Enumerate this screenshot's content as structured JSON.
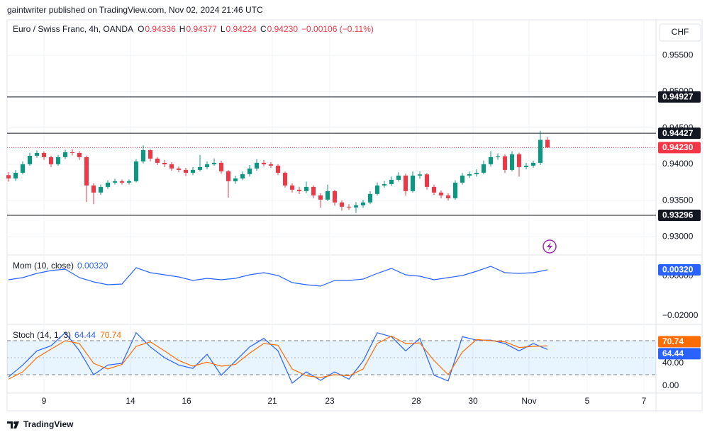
{
  "header": {
    "publisher": "gaintwriter published on TradingView.com, Nov 02, 2024 21:46 UTC",
    "footer": "TradingView"
  },
  "chart_data": [
    {
      "type": "candlestick",
      "title": "Euro / Swiss Franc, 4h, OANDA",
      "currency": "CHF",
      "legend": [
        {
          "key": "O",
          "value": "0.94336"
        },
        {
          "key": "H",
          "value": "0.94377"
        },
        {
          "key": "L",
          "value": "0.94224"
        },
        {
          "key": "C",
          "value": "0.94230"
        }
      ],
      "change": "−0.00106 (−0.11%)",
      "up_color": "#089981",
      "down_color": "#f23645",
      "x": [
        0,
        1,
        2,
        3,
        4,
        5,
        6,
        7,
        8,
        9,
        10,
        11,
        12,
        13,
        14,
        15,
        16,
        17,
        18,
        19,
        20,
        21,
        22,
        23,
        24,
        25,
        26,
        27,
        28,
        29,
        30,
        31,
        32,
        33,
        34,
        35,
        36,
        37,
        38,
        39,
        40,
        41,
        42,
        43,
        44,
        45,
        46,
        47,
        48,
        49,
        50,
        51,
        52,
        53,
        54,
        55,
        56,
        57,
        58,
        59,
        60,
        61,
        62,
        63,
        64,
        65,
        66,
        67,
        68,
        69,
        70,
        71,
        72,
        73,
        74,
        75,
        76
      ],
      "open": [
        0.9385,
        0.93805,
        0.93883,
        0.94,
        0.94117,
        0.94156,
        0.94098,
        0.94,
        0.94098,
        0.94166,
        0.94156,
        0.94098,
        0.93708,
        0.9361,
        0.93688,
        0.93747,
        0.93766,
        0.93747,
        0.93766,
        0.94039,
        0.94195,
        0.94078,
        0.9402,
        0.94,
        0.93942,
        0.93922,
        0.93883,
        0.93922,
        0.93961,
        0.94,
        0.9402,
        0.93903,
        0.93766,
        0.93805,
        0.93864,
        0.93942,
        0.9402,
        0.94,
        0.93981,
        0.93883,
        0.93708,
        0.93649,
        0.9363,
        0.93688,
        0.93571,
        0.93513,
        0.9363,
        0.93474,
        0.93415,
        0.93405,
        0.93434,
        0.93474,
        0.93591,
        0.93708,
        0.93727,
        0.93786,
        0.93844,
        0.9363,
        0.93844,
        0.9386,
        0.93688,
        0.9361,
        0.93571,
        0.93532,
        0.93747,
        0.93844,
        0.93864,
        0.93883,
        0.94,
        0.94098,
        0.9411,
        0.93922,
        0.94137,
        0.93961,
        0.93981,
        0.9402,
        0.94336
      ],
      "high": [
        0.9389,
        0.9392,
        0.9404,
        0.9416,
        0.9419,
        0.9418,
        0.9412,
        0.9413,
        0.942,
        0.9421,
        0.9418,
        0.9412,
        0.9374,
        0.9372,
        0.9378,
        0.938,
        0.9379,
        0.9379,
        0.9407,
        0.9426,
        0.9421,
        0.941,
        0.9406,
        0.9403,
        0.9397,
        0.9395,
        0.9396,
        0.9413,
        0.9404,
        0.9408,
        0.9405,
        0.9392,
        0.9384,
        0.939,
        0.9399,
        0.9407,
        0.9406,
        0.9403,
        0.94,
        0.939,
        0.9374,
        0.9369,
        0.9376,
        0.9371,
        0.936,
        0.9372,
        0.9365,
        0.935,
        0.9345,
        0.9348,
        0.9351,
        0.9363,
        0.9375,
        0.9377,
        0.9383,
        0.9389,
        0.9387,
        0.939,
        0.939,
        0.9388,
        0.9372,
        0.9364,
        0.936,
        0.9378,
        0.9388,
        0.939,
        0.9393,
        0.9405,
        0.9418,
        0.9415,
        0.9414,
        0.9418,
        0.9416,
        0.9402,
        0.9405,
        0.9446,
        0.94377
      ],
      "low": [
        0.9376,
        0.9377,
        0.9386,
        0.9398,
        0.9409,
        0.9406,
        0.9396,
        0.9398,
        0.9407,
        0.9412,
        0.9406,
        0.9348,
        0.9345,
        0.9358,
        0.9366,
        0.9372,
        0.9372,
        0.9372,
        0.9375,
        0.9401,
        0.9404,
        0.9399,
        0.9396,
        0.9391,
        0.9389,
        0.9384,
        0.9385,
        0.939,
        0.9393,
        0.9398,
        0.9387,
        0.9354,
        0.9373,
        0.9378,
        0.9383,
        0.9391,
        0.9397,
        0.9395,
        0.9385,
        0.9368,
        0.9361,
        0.9359,
        0.936,
        0.9353,
        0.934,
        0.9349,
        0.9343,
        0.9336,
        0.9337,
        0.9333,
        0.934,
        0.9345,
        0.9357,
        0.9368,
        0.937,
        0.9376,
        0.9357,
        0.9361,
        0.938,
        0.9365,
        0.9358,
        0.9353,
        0.935,
        0.9351,
        0.9372,
        0.9381,
        0.9383,
        0.9386,
        0.9397,
        0.9406,
        0.9388,
        0.939,
        0.9383,
        0.9393,
        0.9395,
        0.9399,
        0.94224
      ],
      "close": [
        0.93805,
        0.93883,
        0.94,
        0.94117,
        0.94156,
        0.94098,
        0.94,
        0.94098,
        0.94166,
        0.94156,
        0.94098,
        0.93708,
        0.9361,
        0.93688,
        0.93747,
        0.93766,
        0.93747,
        0.93766,
        0.94039,
        0.94195,
        0.94078,
        0.9402,
        0.94,
        0.93942,
        0.93922,
        0.93883,
        0.93922,
        0.93961,
        0.94,
        0.9402,
        0.93903,
        0.93766,
        0.93805,
        0.93864,
        0.93942,
        0.9402,
        0.94,
        0.93981,
        0.93883,
        0.93708,
        0.93649,
        0.9363,
        0.93688,
        0.93571,
        0.93513,
        0.9363,
        0.93474,
        0.93415,
        0.93405,
        0.93434,
        0.93474,
        0.93591,
        0.93708,
        0.93727,
        0.93786,
        0.93844,
        0.9363,
        0.93844,
        0.9386,
        0.93688,
        0.9361,
        0.93571,
        0.93532,
        0.93747,
        0.93844,
        0.93864,
        0.93883,
        0.94,
        0.94098,
        0.9411,
        0.93922,
        0.94137,
        0.93961,
        0.93981,
        0.9402,
        0.94336,
        0.9423
      ],
      "xlim": [
        -0.2,
        91.3
      ],
      "xticks": [
        {
          "value": 5,
          "label": "9"
        },
        {
          "value": 17.2,
          "label": "14"
        },
        {
          "value": 25.1,
          "label": "16"
        },
        {
          "value": 37.2,
          "label": "21"
        },
        {
          "value": 45.3,
          "label": "23"
        },
        {
          "value": 57.5,
          "label": "28"
        },
        {
          "value": 65.5,
          "label": "30"
        },
        {
          "value": 73.4,
          "label": "Nov"
        },
        {
          "value": 81.6,
          "label": "5"
        },
        {
          "value": 89.6,
          "label": "7"
        }
      ],
      "ylim": [
        0.9275,
        0.9599
      ],
      "yticks": [
        {
          "value": 0.955,
          "label": "0.95500"
        },
        {
          "value": 0.95,
          "label": "0.95000"
        },
        {
          "value": 0.945,
          "label": "0.94500"
        },
        {
          "value": 0.94,
          "label": "0.94000"
        },
        {
          "value": 0.935,
          "label": "0.93500"
        },
        {
          "value": 0.93,
          "label": "0.93000"
        }
      ],
      "levels": [
        {
          "value": 0.94927,
          "label": "0.94927"
        },
        {
          "value": 0.94427,
          "label": "0.94427"
        },
        {
          "value": 0.93296,
          "label": "0.93296"
        }
      ],
      "last_price": {
        "value": 0.9423,
        "label": "0.94230"
      },
      "grid": true
    },
    {
      "type": "line",
      "title": "Mom (10, close)",
      "last_label": "0.00320",
      "series": [
        {
          "name": "Mom",
          "color": "#2962ff",
          "x": [
            0,
            2,
            4,
            6,
            8,
            10,
            12,
            14,
            16,
            18,
            20,
            22,
            24,
            26,
            28,
            30,
            32,
            34,
            36,
            38,
            40,
            42,
            44,
            46,
            48,
            50,
            52,
            54,
            56,
            58,
            60,
            62,
            64,
            66,
            68,
            70,
            72,
            74,
            76
          ],
          "values": [
            -0.00179,
            -0.00071,
            0.00143,
            0.00286,
            0.00357,
            -0.00071,
            -0.00286,
            -0.00429,
            -0.00393,
            0.00429,
            0.00179,
            0.00071,
            -0.00036,
            -0.00214,
            -0.00107,
            -0.00179,
            -0.00107,
            0.00071,
            0.00179,
            0.00036,
            -0.00321,
            -0.00429,
            -0.005,
            -0.00214,
            -0.00214,
            -0.00143,
            0.00143,
            0.00393,
            0.00071,
            0,
            -0.00179,
            -0.00071,
            0.00036,
            0.0025,
            0.005,
            0.00179,
            0.00143,
            0.00179,
            0.0032
          ]
        }
      ],
      "ylim": [
        -0.02429,
        0.01071
      ],
      "yticks": [
        {
          "value": 0,
          "label": "0.00000"
        },
        {
          "value": -0.02,
          "label": "−0.02000"
        }
      ]
    },
    {
      "type": "line",
      "title": "Stoch (14, 1, 3)",
      "series": [
        {
          "name": "%K",
          "color": "#2962ff",
          "last_label": "64.44",
          "x": [
            0,
            2,
            4,
            6,
            8,
            10,
            12,
            14,
            16,
            18,
            20,
            22,
            24,
            26,
            28,
            30,
            32,
            34,
            36,
            38,
            40,
            42,
            44,
            46,
            48,
            50,
            52,
            54,
            56,
            58,
            60,
            62,
            64,
            66,
            68,
            70,
            72,
            74,
            76
          ],
          "values": [
            16,
            37,
            62,
            71,
            94,
            62,
            20,
            37,
            40,
            94,
            69,
            50,
            37,
            31,
            56,
            19,
            44,
            69,
            84,
            62,
            5,
            25,
            10,
            25,
            12,
            44,
            94,
            87,
            62,
            84,
            19,
            9,
            87,
            81,
            81,
            75,
            62,
            75,
            64.44
          ]
        },
        {
          "name": "%D",
          "color": "#ff6d00",
          "last_label": "70.74",
          "x": [
            0,
            2,
            4,
            6,
            8,
            10,
            12,
            14,
            16,
            18,
            20,
            22,
            24,
            26,
            28,
            30,
            32,
            34,
            36,
            38,
            40,
            42,
            44,
            46,
            48,
            50,
            52,
            54,
            56,
            58,
            60,
            62,
            64,
            66,
            68,
            70,
            72,
            74,
            76
          ],
          "values": [
            12,
            25,
            50,
            65,
            80,
            75,
            40,
            30,
            38,
            70,
            78,
            62,
            45,
            35,
            42,
            35,
            38,
            58,
            75,
            72,
            30,
            18,
            15,
            20,
            18,
            30,
            75,
            88,
            75,
            76,
            45,
            20,
            60,
            82,
            80,
            78,
            68,
            70,
            70.74
          ]
        }
      ],
      "bands": [
        20,
        80
      ],
      "midline": 50,
      "ylim": [
        -12.5,
        108.75
      ],
      "yticks": [
        {
          "value": 0,
          "label": "0.00"
        },
        {
          "value": 40,
          "label": "40.00"
        }
      ]
    }
  ]
}
